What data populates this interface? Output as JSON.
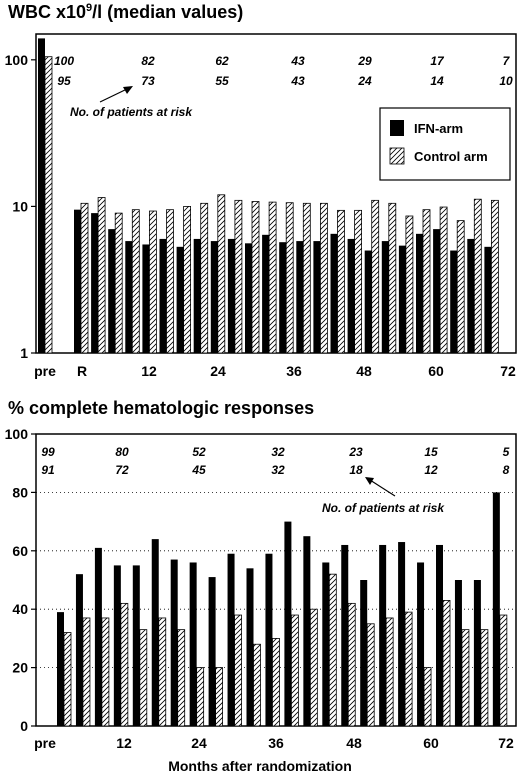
{
  "chart_data": [
    {
      "type": "bar",
      "title": "WBC x10⁹/l (median values)",
      "yscale": "log",
      "ylim": [
        1,
        150
      ],
      "yticks": [
        "1",
        "10",
        "100"
      ],
      "xticks": [
        "pre",
        "R",
        "12",
        "24",
        "36",
        "48",
        "60",
        "72"
      ],
      "legend": {
        "position": "right",
        "entries": [
          "IFN-arm",
          "Control arm"
        ]
      },
      "at_risk_label": "No. of patients at risk",
      "at_risk_ifn": [
        "100",
        "82",
        "62",
        "43",
        "29",
        "17",
        "7"
      ],
      "at_risk_control": [
        "95",
        "73",
        "55",
        "43",
        "24",
        "14",
        "10"
      ],
      "series": [
        {
          "name": "IFN-arm",
          "values": [
            140,
            9.5,
            9.0,
            7.0,
            5.8,
            5.5,
            6.0,
            5.3,
            6.0,
            5.8,
            6.0,
            5.6,
            6.4,
            5.7,
            5.8,
            5.8,
            6.5,
            6.0,
            5.0,
            5.8,
            5.4,
            6.5,
            7.0,
            5.0,
            6.0,
            5.3
          ]
        },
        {
          "name": "Control arm",
          "values": [
            105,
            10.5,
            11.5,
            9.0,
            9.5,
            9.3,
            9.5,
            10.0,
            10.5,
            12.0,
            11.0,
            10.8,
            10.7,
            10.6,
            10.5,
            10.5,
            9.4,
            9.4,
            11.0,
            10.5,
            8.6,
            9.5,
            9.9,
            8.0,
            11.2,
            11.0
          ]
        }
      ]
    },
    {
      "type": "bar",
      "title": "% complete hematologic responses",
      "ylim": [
        0,
        100
      ],
      "yticks": [
        "0",
        "20",
        "40",
        "60",
        "80",
        "100"
      ],
      "xticks": [
        "pre",
        "12",
        "24",
        "36",
        "48",
        "60",
        "72"
      ],
      "grid": "horizontal dotted",
      "xlabel": "Months after randomization",
      "at_risk_label": "No. of patients at risk",
      "at_risk_ifn": [
        "99",
        "80",
        "52",
        "32",
        "23",
        "15",
        "5"
      ],
      "at_risk_control": [
        "91",
        "72",
        "45",
        "32",
        "18",
        "12",
        "8"
      ],
      "series": [
        {
          "name": "IFN-arm",
          "values": [
            39,
            52,
            61,
            55,
            55,
            64,
            57,
            56,
            51,
            59,
            54,
            59,
            70,
            65,
            56,
            62,
            50,
            62,
            63,
            56,
            62,
            50,
            50,
            80
          ]
        },
        {
          "name": "Control arm",
          "values": [
            32,
            37,
            37,
            42,
            33,
            37,
            33,
            20,
            20,
            38,
            28,
            30,
            38,
            40,
            52,
            42,
            35,
            37,
            39,
            20,
            43,
            33,
            33,
            38
          ]
        }
      ]
    }
  ]
}
